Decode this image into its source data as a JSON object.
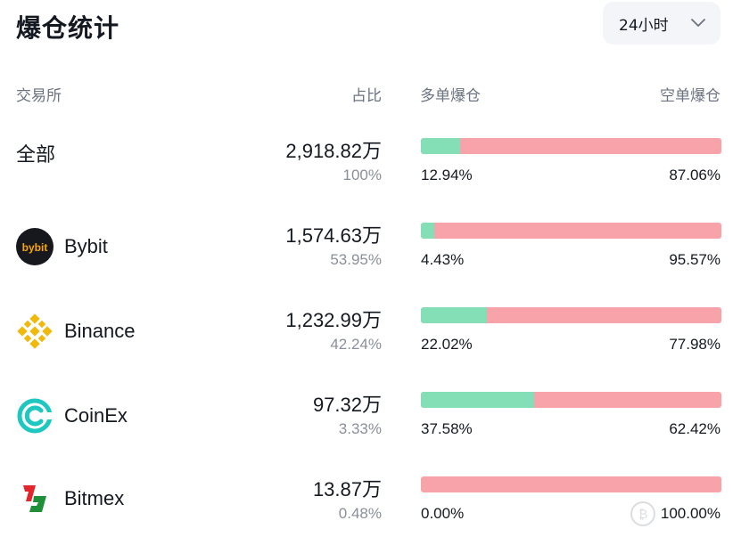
{
  "title": "爆仓统计",
  "period": {
    "selected": "24小时"
  },
  "columns": {
    "exchange": "交易所",
    "share": "占比",
    "long": "多单爆仓",
    "short": "空单爆仓"
  },
  "rows": [
    {
      "name": "全部",
      "amount": "2,918.82万",
      "share": "100%",
      "long_pct": "12.94%",
      "short_pct": "87.06%",
      "long_fraction": 0.1294,
      "icon": ""
    },
    {
      "name": "Bybit",
      "amount": "1,574.63万",
      "share": "53.95%",
      "long_pct": "4.43%",
      "short_pct": "95.57%",
      "long_fraction": 0.0443,
      "icon": "bybit-logo-icon",
      "logo_text": "bybit"
    },
    {
      "name": "Binance",
      "amount": "1,232.99万",
      "share": "42.24%",
      "long_pct": "22.02%",
      "short_pct": "77.98%",
      "long_fraction": 0.2202,
      "icon": "binance-logo-icon"
    },
    {
      "name": "CoinEx",
      "amount": "97.32万",
      "share": "3.33%",
      "long_pct": "37.58%",
      "short_pct": "62.42%",
      "long_fraction": 0.3758,
      "icon": "coinex-logo-icon"
    },
    {
      "name": "Bitmex",
      "amount": "13.87万",
      "share": "0.48%",
      "long_pct": "0.00%",
      "short_pct": "100.00%",
      "long_fraction": 0.0,
      "icon": "bitmex-logo-icon"
    }
  ],
  "colors": {
    "long": "#84dfb6",
    "short": "#f8a2aa",
    "binance": "#f0b90b",
    "coinex": "#1ec7c0",
    "bitmex_red": "#e3262b",
    "bitmex_green": "#1f8f3a"
  }
}
